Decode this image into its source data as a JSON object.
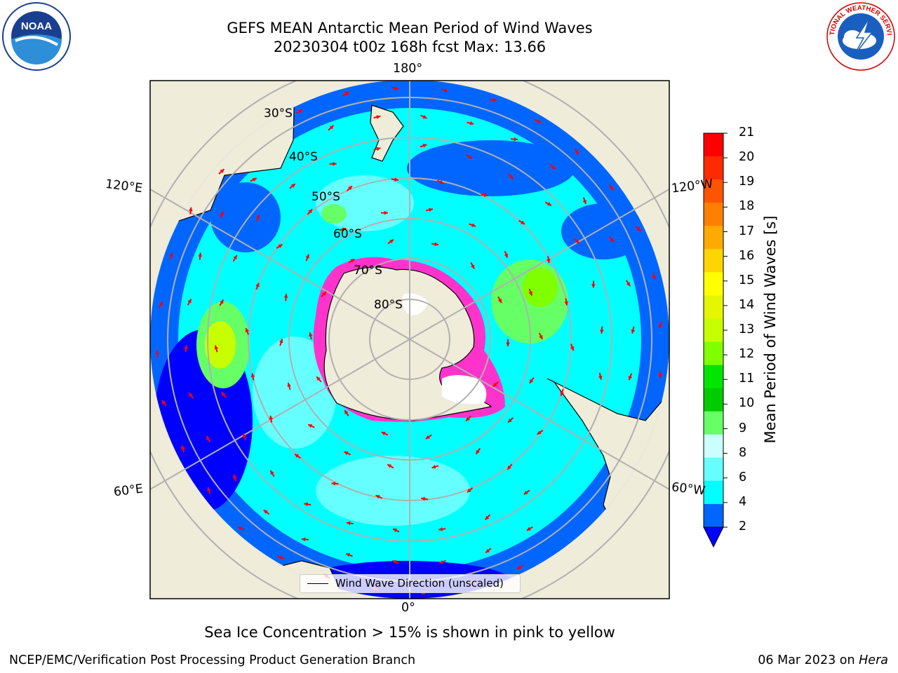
{
  "title_line1": "GEFS MEAN Antarctic Mean Period of Wind Waves",
  "title_line2": "20230304 t00z 168h fcst   Max: 13.66",
  "caption": "Sea Ice Concentration > 15% is shown in pink to yellow",
  "footer_left": "NCEP/EMC/Verification Post Processing Product Generation Branch",
  "footer_right_prefix": "06 Mar 2023 on ",
  "footer_right_host": "Hera",
  "legend_label": "Wind Wave Direction (unscaled)",
  "colorbar": {
    "label": "Mean Period of Wind Waves [s]",
    "ticks": [
      "21",
      "20",
      "19",
      "18",
      "17",
      "16",
      "15",
      "14",
      "13",
      "12",
      "11",
      "10",
      "9",
      "8",
      "6",
      "4",
      "2"
    ],
    "colors": [
      "#ff0000",
      "#ff2a00",
      "#ff5500",
      "#ff8000",
      "#ffaa00",
      "#ffd500",
      "#ffff00",
      "#e6f500",
      "#c8ff00",
      "#80ff00",
      "#00e600",
      "#00cc00",
      "#66ff66",
      "#ccffff",
      "#66ffff",
      "#00ffff",
      "#0066ff",
      "#0000ff"
    ]
  },
  "lon_labels": {
    "top": "180°",
    "bottom": "0°",
    "upper_left": "120°E",
    "upper_right": "120°W",
    "lower_left": "60°E",
    "lower_right": "60°W"
  },
  "lat_labels": [
    "30°S",
    "40°S",
    "50°S",
    "60°S",
    "70°S",
    "80°S"
  ],
  "logos": {
    "noaa": "NOAA",
    "nws": "NATIONAL WEATHER SERVICE"
  },
  "colors": {
    "land": "#efecda",
    "ocean_deep": "#0000ff",
    "ocean_blue": "#0066ff",
    "ocean_cyan": "#00ffff",
    "ocean_lightcyan": "#66ffff",
    "arrow": "#ff0000",
    "grid": "#b0b0b0",
    "ice": "#ff33cc"
  }
}
